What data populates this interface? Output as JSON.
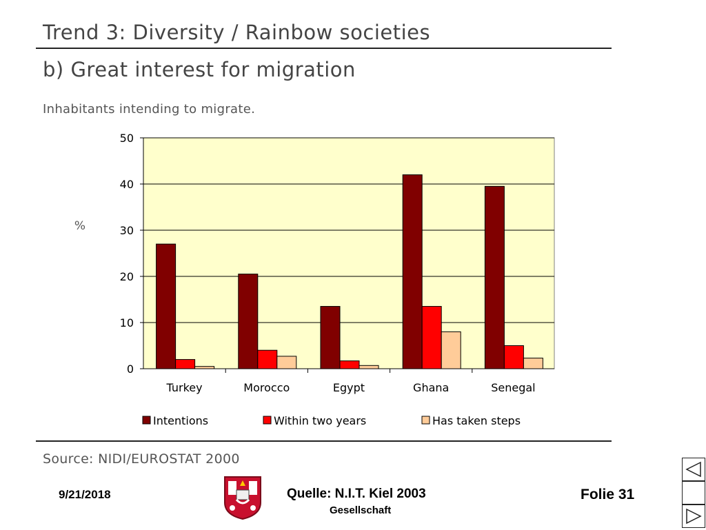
{
  "slide": {
    "title": "Trend 3: Diversity / Rainbow societies",
    "subtitle": "b) Great interest for migration",
    "caption": "Inhabitants intending to migrate.",
    "source": "Source: NIDI/EUROSTAT 2000"
  },
  "footer": {
    "date": "9/21/2018",
    "source": "Quelle: N.I.T. Kiel 2003",
    "hidden_text": "Gesellschaft",
    "slide_number": "Folie 31"
  },
  "colors": {
    "plot_background": "#FFFFCC",
    "intentions": "#800000",
    "within_two_years": "#FF0000",
    "has_taken_steps": "#FFCC99"
  },
  "chart_data": {
    "type": "bar",
    "title": "",
    "xlabel": "",
    "ylabel": "%",
    "ylim": [
      0,
      50
    ],
    "yticks": [
      0,
      10,
      20,
      30,
      40,
      50
    ],
    "grid": true,
    "legend_position": "bottom",
    "categories": [
      "Turkey",
      "Morocco",
      "Egypt",
      "Ghana",
      "Senegal"
    ],
    "series": [
      {
        "name": "Intentions",
        "values": [
          27,
          20.5,
          13.5,
          42,
          39.5
        ]
      },
      {
        "name": "Within two years",
        "values": [
          2,
          4,
          1.7,
          13.5,
          5
        ]
      },
      {
        "name": "Has taken steps",
        "values": [
          0.5,
          2.7,
          0.7,
          8,
          2.3
        ]
      }
    ]
  }
}
